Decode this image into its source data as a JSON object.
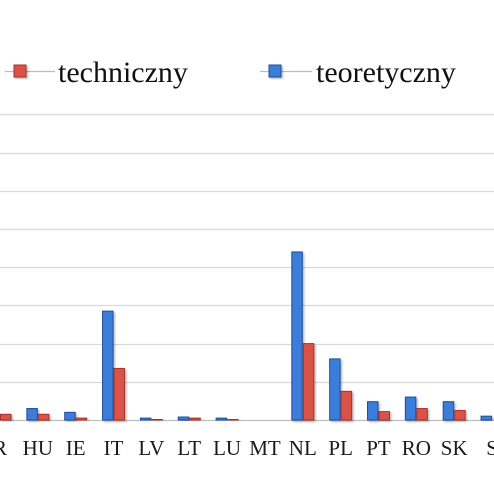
{
  "chart_data": {
    "type": "bar",
    "title": "",
    "xlabel": "",
    "ylabel": "",
    "categories": [
      "R",
      "HU",
      "IE",
      "IT",
      "LV",
      "LT",
      "LU",
      "MT",
      "NL",
      "PL",
      "PT",
      "RO",
      "SK",
      "S"
    ],
    "series": [
      {
        "name": "techniczny",
        "color": "#d9534a",
        "values": [
          0.15,
          0.15,
          0.05,
          1.35,
          0.02,
          0.05,
          0.02,
          0.0,
          2.0,
          0.75,
          0.22,
          0.3,
          0.25,
          0.0
        ]
      },
      {
        "name": "teoretyczny",
        "color": "#3a7dd8",
        "values": [
          0.0,
          0.3,
          0.2,
          2.85,
          0.05,
          0.08,
          0.05,
          0.0,
          4.4,
          1.6,
          0.48,
          0.6,
          0.48,
          0.1
        ]
      }
    ],
    "ylim": [
      0,
      8
    ],
    "gridlines": [
      0,
      1,
      2,
      3,
      4,
      5,
      6,
      7,
      8
    ],
    "grid": true,
    "legend": "top"
  }
}
